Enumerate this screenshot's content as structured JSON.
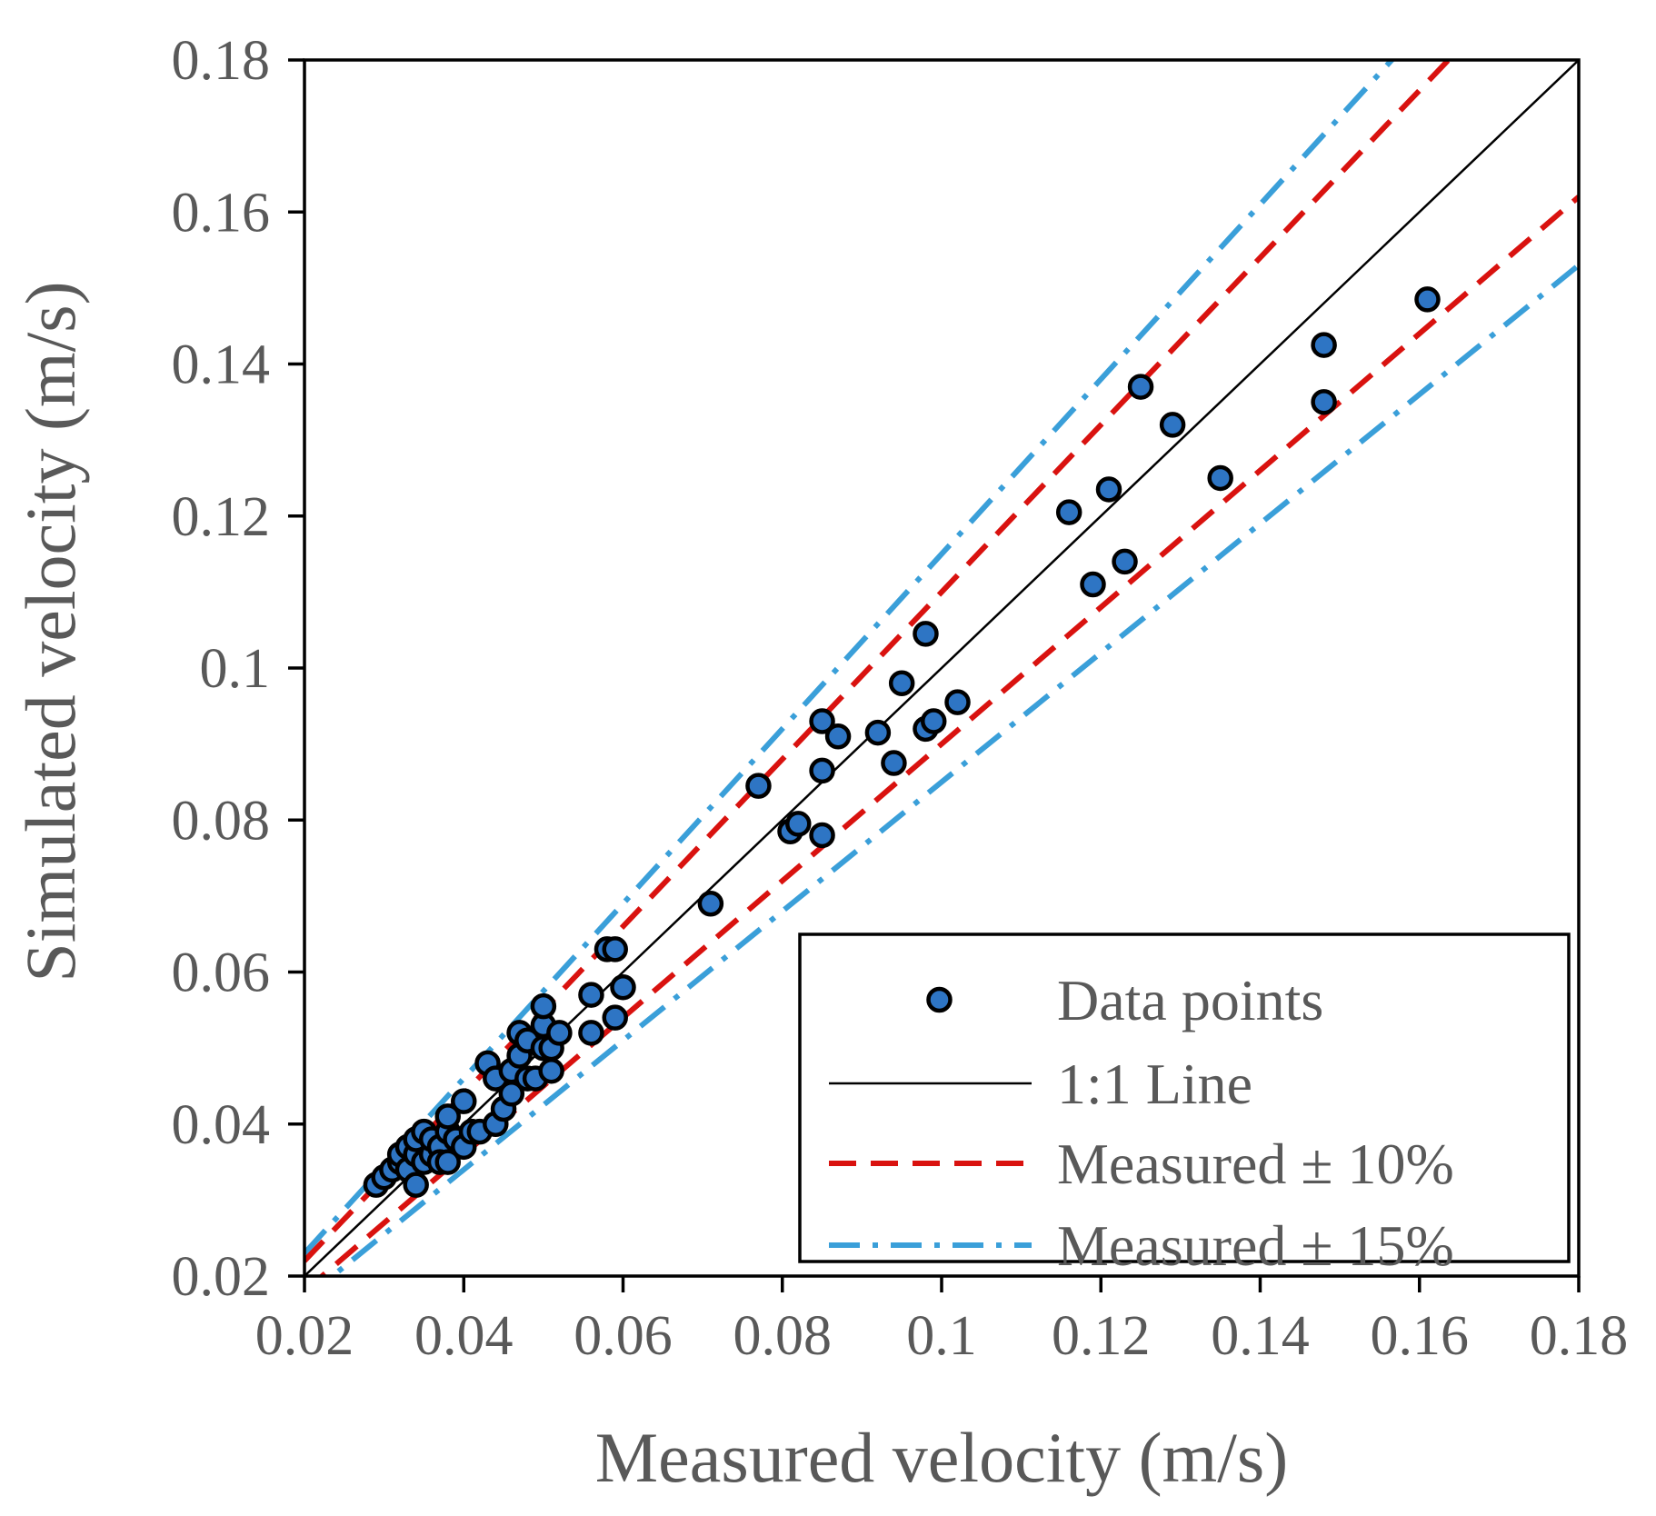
{
  "chart_data": {
    "type": "scatter",
    "title": "",
    "xlabel": "Measured velocity (m/s)",
    "ylabel": "Simulated velocity (m/s)",
    "xlim": [
      0.02,
      0.18
    ],
    "ylim": [
      0.02,
      0.18
    ],
    "x_ticks": [
      "0.02",
      "0.04",
      "0.06",
      "0.08",
      "0.1",
      "0.12",
      "0.14",
      "0.16",
      "0.18"
    ],
    "y_ticks": [
      "0.02",
      "0.04",
      "0.06",
      "0.08",
      "0.1",
      "0.12",
      "0.14",
      "0.16",
      "0.18"
    ],
    "grid": false,
    "legend_position": "bottom-right",
    "legend": [
      {
        "label": "Data points",
        "style": "marker"
      },
      {
        "label": "1:1 Line",
        "style": "solid"
      },
      {
        "label": "Measured ± 10%",
        "style": "dashed"
      },
      {
        "label": "Measured ± 15%",
        "style": "dash-dot"
      }
    ],
    "colors": {
      "marker_fill": "#2e75c4",
      "marker_edge": "#000000",
      "one_to_one": "#000000",
      "band_10": "#d9120f",
      "band_15": "#3a9fd9",
      "text": "#595959"
    },
    "reference_lines": {
      "one_to_one_factor": 1.0,
      "band_10_factors": [
        1.1,
        0.9
      ],
      "band_15_factors": [
        1.15,
        0.85
      ]
    },
    "series": [
      {
        "name": "Data points",
        "points": [
          [
            0.029,
            0.032
          ],
          [
            0.03,
            0.033
          ],
          [
            0.031,
            0.034
          ],
          [
            0.032,
            0.035
          ],
          [
            0.032,
            0.036
          ],
          [
            0.033,
            0.034
          ],
          [
            0.033,
            0.037
          ],
          [
            0.034,
            0.032
          ],
          [
            0.034,
            0.036
          ],
          [
            0.034,
            0.038
          ],
          [
            0.035,
            0.035
          ],
          [
            0.035,
            0.039
          ],
          [
            0.036,
            0.036
          ],
          [
            0.036,
            0.038
          ],
          [
            0.037,
            0.037
          ],
          [
            0.037,
            0.035
          ],
          [
            0.038,
            0.039
          ],
          [
            0.038,
            0.035
          ],
          [
            0.038,
            0.041
          ],
          [
            0.039,
            0.038
          ],
          [
            0.04,
            0.037
          ],
          [
            0.04,
            0.043
          ],
          [
            0.041,
            0.039
          ],
          [
            0.042,
            0.039
          ],
          [
            0.043,
            0.048
          ],
          [
            0.044,
            0.046
          ],
          [
            0.044,
            0.04
          ],
          [
            0.045,
            0.042
          ],
          [
            0.046,
            0.044
          ],
          [
            0.046,
            0.047
          ],
          [
            0.047,
            0.049
          ],
          [
            0.047,
            0.052
          ],
          [
            0.048,
            0.046
          ],
          [
            0.048,
            0.051
          ],
          [
            0.049,
            0.046
          ],
          [
            0.05,
            0.05
          ],
          [
            0.05,
            0.053
          ],
          [
            0.05,
            0.0555
          ],
          [
            0.051,
            0.047
          ],
          [
            0.051,
            0.05
          ],
          [
            0.052,
            0.052
          ],
          [
            0.056,
            0.052
          ],
          [
            0.056,
            0.057
          ],
          [
            0.058,
            0.063
          ],
          [
            0.059,
            0.063
          ],
          [
            0.059,
            0.054
          ],
          [
            0.06,
            0.058
          ],
          [
            0.071,
            0.069
          ],
          [
            0.077,
            0.0845
          ],
          [
            0.081,
            0.0785
          ],
          [
            0.082,
            0.0795
          ],
          [
            0.085,
            0.093
          ],
          [
            0.085,
            0.0865
          ],
          [
            0.085,
            0.078
          ],
          [
            0.087,
            0.091
          ],
          [
            0.092,
            0.0915
          ],
          [
            0.094,
            0.0875
          ],
          [
            0.095,
            0.098
          ],
          [
            0.098,
            0.1045
          ],
          [
            0.098,
            0.092
          ],
          [
            0.099,
            0.093
          ],
          [
            0.102,
            0.0955
          ],
          [
            0.116,
            0.1205
          ],
          [
            0.119,
            0.111
          ],
          [
            0.121,
            0.1235
          ],
          [
            0.123,
            0.114
          ],
          [
            0.125,
            0.137
          ],
          [
            0.129,
            0.132
          ],
          [
            0.135,
            0.125
          ],
          [
            0.148,
            0.1425
          ],
          [
            0.148,
            0.135
          ],
          [
            0.161,
            0.1485
          ]
        ]
      }
    ]
  }
}
